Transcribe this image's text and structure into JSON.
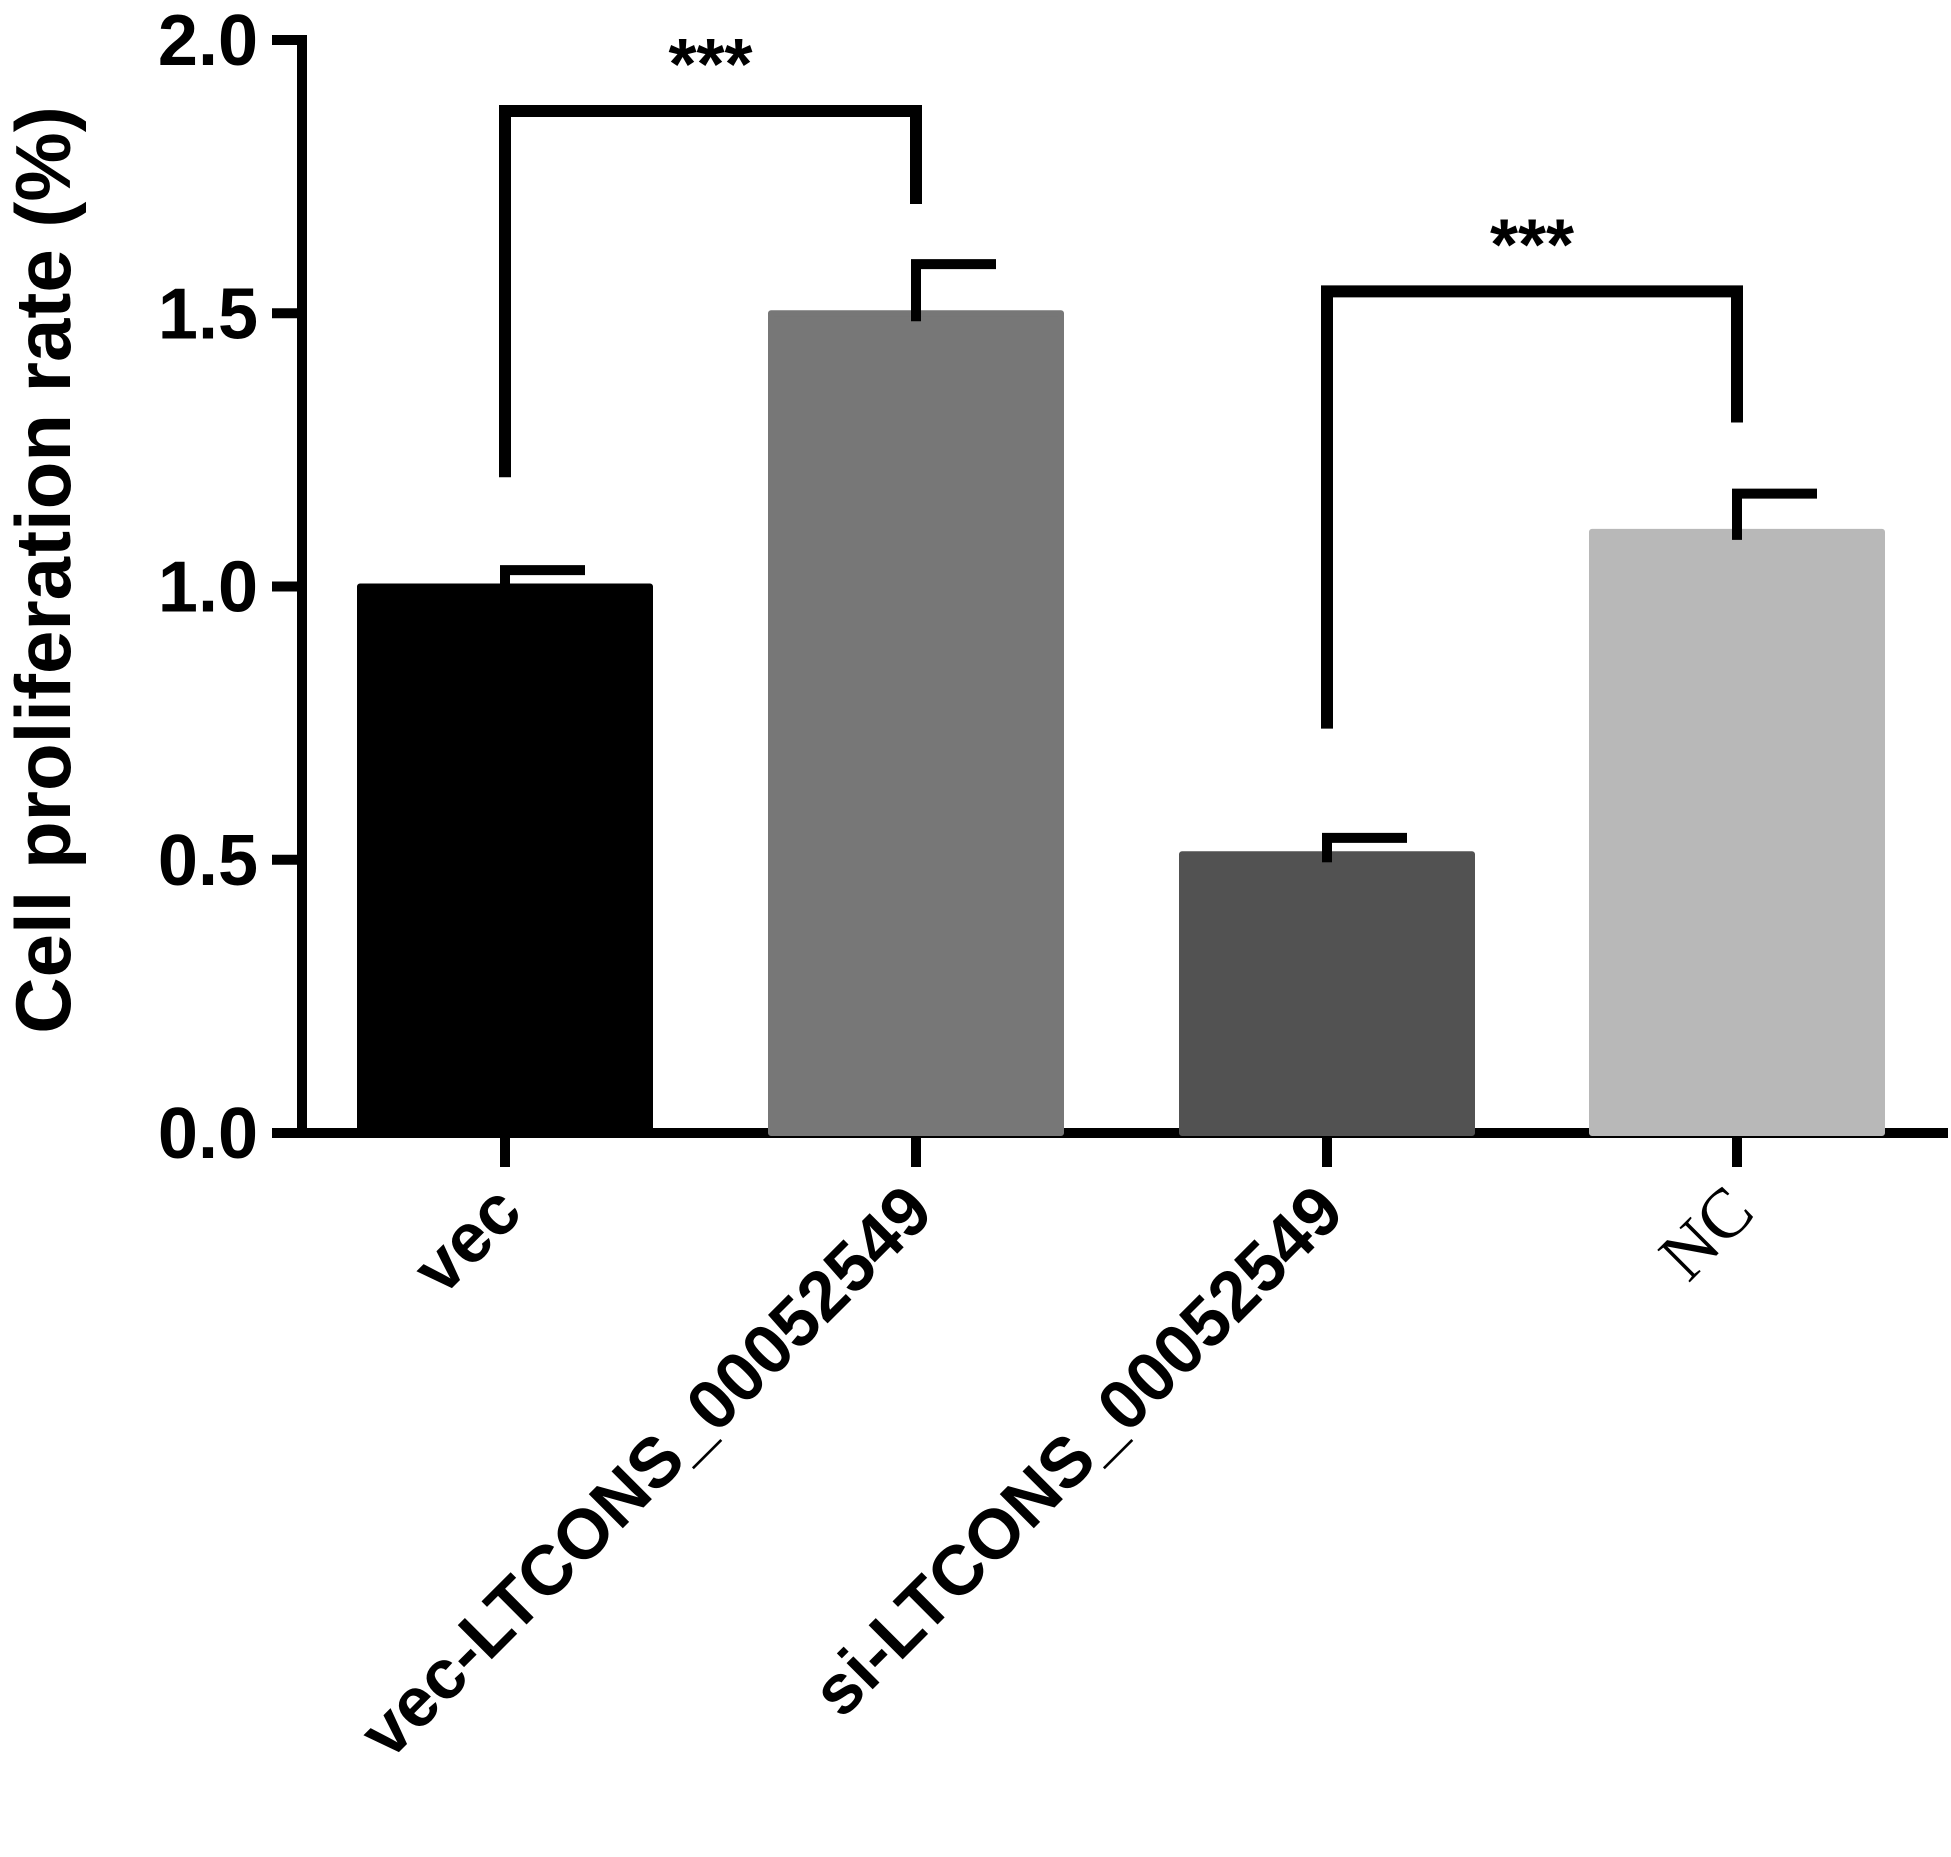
{
  "chart_data": {
    "type": "bar",
    "title": "",
    "xlabel": "",
    "ylabel": "Cell proliferation rate (%)",
    "ylim": [
      0,
      2.0
    ],
    "yticks": [
      "0.0",
      "0.5",
      "1.0",
      "1.5",
      "2.0"
    ],
    "categories": [
      "vec",
      "vec-LTCONS_00052549",
      "si-LTCONS_00052549",
      "NC"
    ],
    "values": [
      1.0,
      1.5,
      0.51,
      1.1
    ],
    "errors": [
      0.03,
      0.09,
      0.03,
      0.07
    ],
    "colors": [
      "#000000",
      "#777777",
      "#525252",
      "#b8b8b8"
    ],
    "grid": false,
    "legend": "none",
    "significance": [
      {
        "from": 0,
        "to": 1,
        "label": "***",
        "left_y": 1.2,
        "right_y": 1.7,
        "top_y": 1.87
      },
      {
        "from": 2,
        "to": 3,
        "label": "***",
        "left_y": 0.74,
        "right_y": 1.3,
        "top_y": 1.54
      }
    ]
  }
}
